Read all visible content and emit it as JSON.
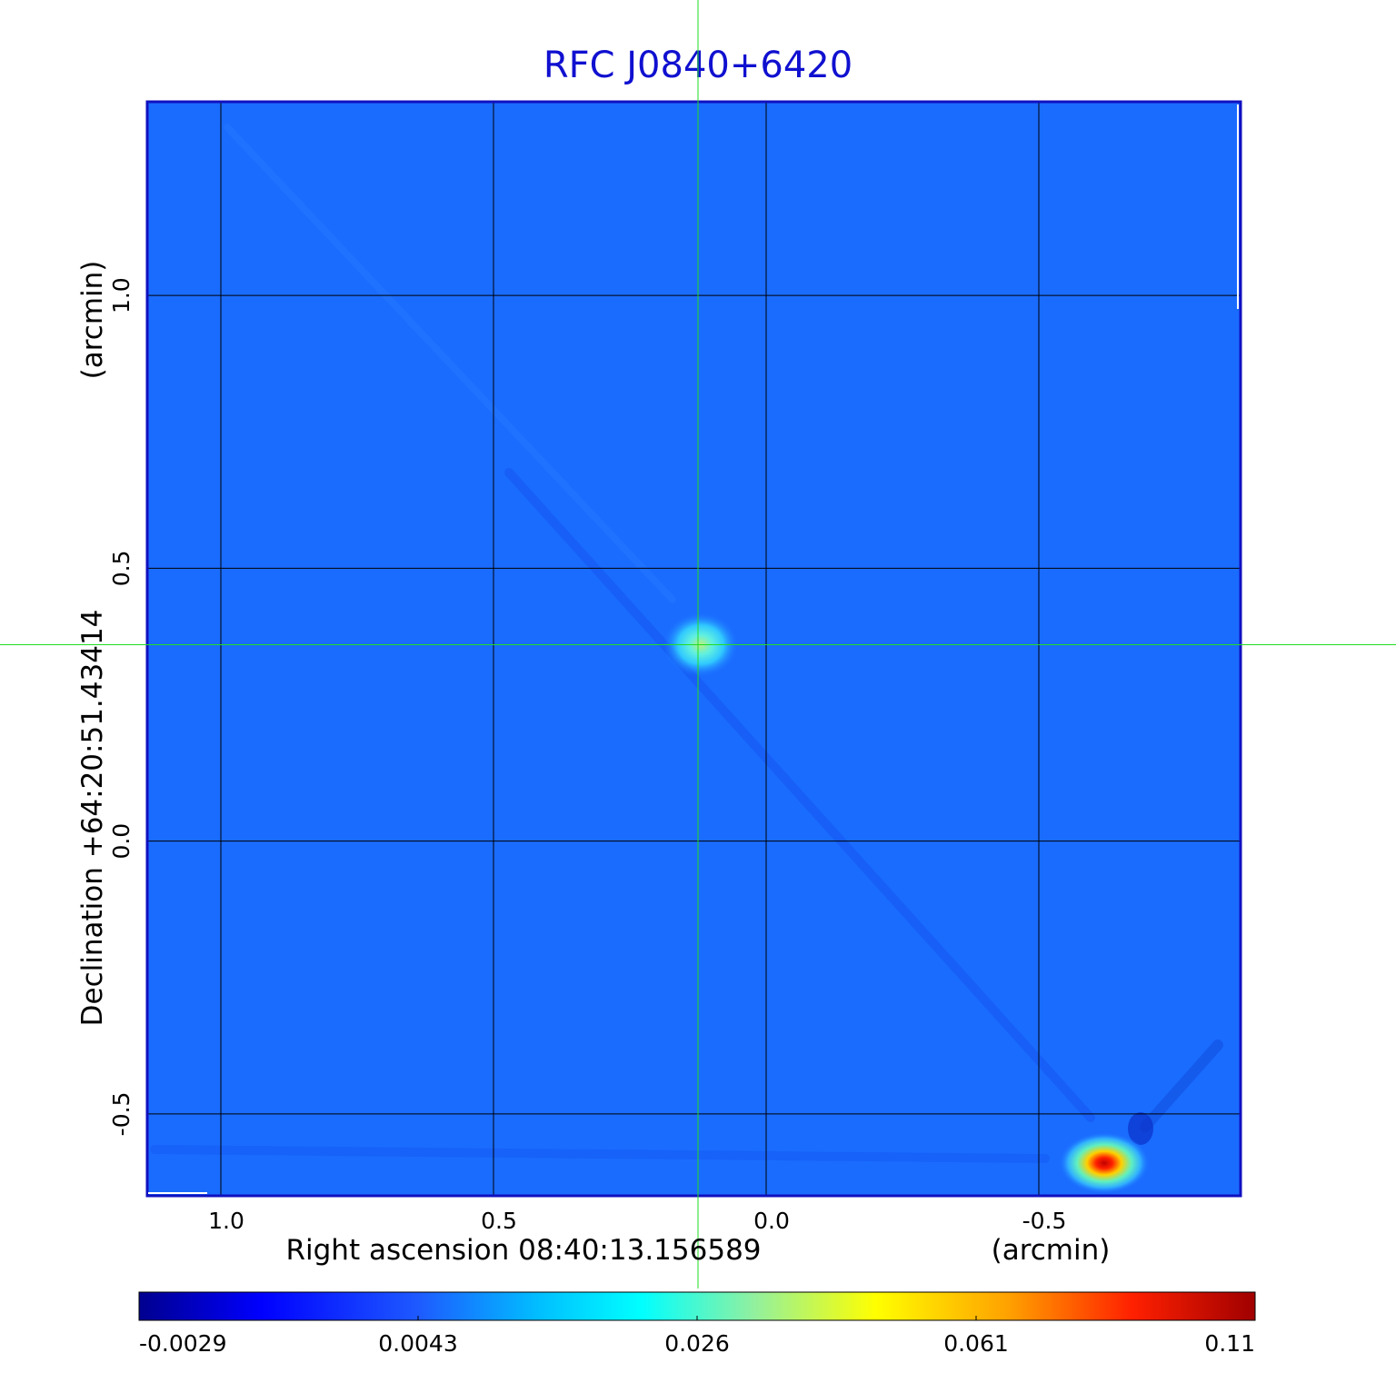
{
  "chart_data": {
    "type": "heatmap",
    "title": "RFC J0840+6420",
    "xlabel": "Right ascension  08:40:13.156589",
    "xunit": "(arcmin)",
    "ylabel": "Declination  +64:20:51.43414",
    "yunit": "(arcmin)",
    "xlim": [
      1.135,
      -0.87
    ],
    "ylim": [
      -0.65,
      1.355
    ],
    "x_ticks": [
      {
        "value": 1.0,
        "label": "1.0"
      },
      {
        "value": 0.5,
        "label": "0.5"
      },
      {
        "value": 0.0,
        "label": "0.0"
      },
      {
        "value": -0.5,
        "label": "-0.5"
      }
    ],
    "y_ticks": [
      {
        "value": 1.0,
        "label": "1.0"
      },
      {
        "value": 0.5,
        "label": "0.5"
      },
      {
        "value": 0.0,
        "label": "0.0"
      },
      {
        "value": -0.5,
        "label": "-0.5"
      }
    ],
    "grid": true,
    "crosshair": {
      "x": 0.125,
      "y": 0.36
    },
    "colorscale": "jet",
    "colorbar": {
      "ticks": [
        "-0.0029",
        "0.0043",
        "0.026",
        "0.061",
        "0.11"
      ]
    },
    "sources": [
      {
        "x": 0.12,
        "y": 0.36,
        "peak": 0.03
      },
      {
        "x": -0.62,
        "y": -0.59,
        "peak": 0.11
      }
    ]
  }
}
